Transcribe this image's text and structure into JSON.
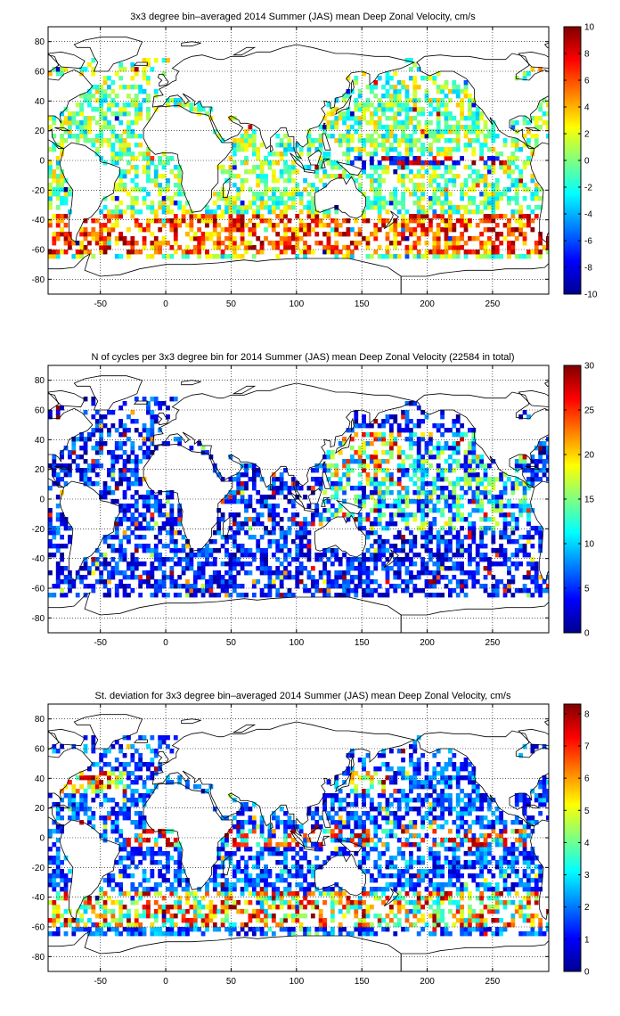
{
  "figure": {
    "background": "#ffffff"
  },
  "chart_data": [
    {
      "type": "heatmap",
      "title": "3x3 degree bin–averaged 2014 Summer (JAS) mean Deep Zonal Velocity, cm/s",
      "xlabel": "",
      "ylabel": "",
      "xlim": [
        -90,
        293
      ],
      "ylim": [
        -90,
        90
      ],
      "x_ticks": [
        "-50",
        "0",
        "50",
        "100",
        "150",
        "200",
        "250"
      ],
      "y_ticks": [
        "80",
        "60",
        "40",
        "20",
        "0",
        "-20",
        "-40",
        "-60",
        "-80"
      ],
      "grid": true,
      "grid_style": "dotted",
      "bin_size_deg": 3,
      "colormap": "jet",
      "clim": [
        -10,
        10
      ],
      "colorbar_ticks": [
        "10",
        "8",
        "6",
        "4",
        "2",
        "0",
        "-2",
        "-4",
        "-6",
        "-8",
        "-10"
      ],
      "field_pattern": "velocity"
    },
    {
      "type": "heatmap",
      "title": "N of cycles per 3x3 degree bin for 2014 Summer (JAS) mean Deep Zonal Velocity (22584 in total)",
      "xlabel": "",
      "ylabel": "",
      "xlim": [
        -90,
        293
      ],
      "ylim": [
        -90,
        90
      ],
      "x_ticks": [
        "-50",
        "0",
        "50",
        "100",
        "150",
        "200",
        "250"
      ],
      "y_ticks": [
        "80",
        "60",
        "40",
        "20",
        "0",
        "-20",
        "-40",
        "-60",
        "-80"
      ],
      "grid": true,
      "grid_style": "dotted",
      "bin_size_deg": 3,
      "colormap": "jet",
      "clim": [
        0,
        30
      ],
      "colorbar_ticks": [
        "30",
        "25",
        "20",
        "15",
        "10",
        "5",
        "0"
      ],
      "field_pattern": "counts"
    },
    {
      "type": "heatmap",
      "title": "St. deviation for 3x3 degree bin–averaged 2014 Summer (JAS) mean Deep Zonal Velocity, cm/s",
      "xlabel": "",
      "ylabel": "",
      "xlim": [
        -90,
        293
      ],
      "ylim": [
        -90,
        90
      ],
      "x_ticks": [
        "-50",
        "0",
        "50",
        "100",
        "150",
        "200",
        "250"
      ],
      "y_ticks": [
        "80",
        "60",
        "40",
        "20",
        "0",
        "-20",
        "-40",
        "-60",
        "-80"
      ],
      "grid": true,
      "grid_style": "dotted",
      "bin_size_deg": 3,
      "colormap": "jet",
      "clim": [
        0,
        8.3
      ],
      "colorbar_ticks": [
        "8",
        "7",
        "6",
        "5",
        "4",
        "3",
        "2",
        "1",
        "0"
      ],
      "field_pattern": "stdev"
    }
  ]
}
